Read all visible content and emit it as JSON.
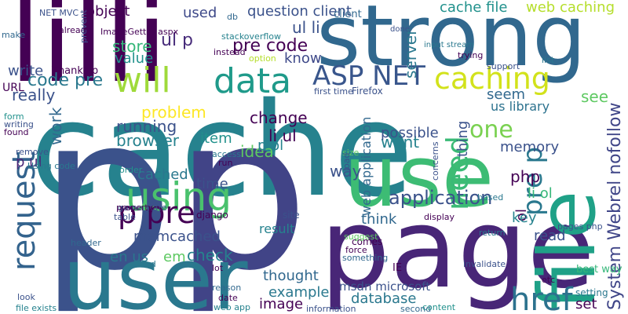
{
  "words": [
    "lilli",
    "strong",
    "cache",
    "p",
    "p",
    "page",
    "user",
    "use",
    "file",
    "using",
    "will",
    "data",
    "caching",
    "ASP NET",
    "request",
    "p pre",
    "href",
    "need",
    "pre p",
    "one",
    "System Webrel nofollow",
    "question client",
    "object",
    "used",
    "cache file",
    "web caching",
    "ul p",
    "ul li",
    "pre code",
    "store",
    "value",
    "know",
    "server",
    "code pre",
    "write",
    "Thanks p",
    "really",
    "problem",
    "see",
    "us library",
    "seem",
    "running",
    "item",
    "change",
    "idea",
    "browser",
    "li ul",
    "p ol",
    "want",
    "possible",
    "thing",
    "memory",
    "work",
    "p ul",
    "cached",
    "time",
    "way",
    "php",
    "li ol",
    "application",
    "think",
    "ol",
    "key",
    "memcached",
    "em",
    "check",
    "en us",
    "read",
    "thought",
    "example",
    "image",
    "database",
    "msdn microsoft",
    "set",
    "best way",
    "web application",
    "result",
    "IE",
    "URL",
    "NET MVC",
    "first time",
    "Firefox",
    "make",
    "already",
    "stackoverflow",
    "instead",
    "done",
    "input stream",
    "trying",
    "support",
    "list",
    "setting",
    "django",
    "game state",
    "order",
    "force",
    "site",
    "comes",
    "suggest",
    "something",
    "invalidate",
    "return",
    "pages php",
    "lot",
    "end",
    "reason",
    "date",
    "web app",
    "information",
    "second",
    "content",
    "etc",
    "look",
    "file exists",
    "form",
    "writing",
    "found",
    "remove",
    "Using code",
    "property",
    "table",
    "header",
    "access",
    "run",
    "size",
    "load",
    "display",
    "concerns",
    "based",
    "prevent",
    "ImageGetter aspx",
    "db",
    "option",
    "client"
  ]
}
